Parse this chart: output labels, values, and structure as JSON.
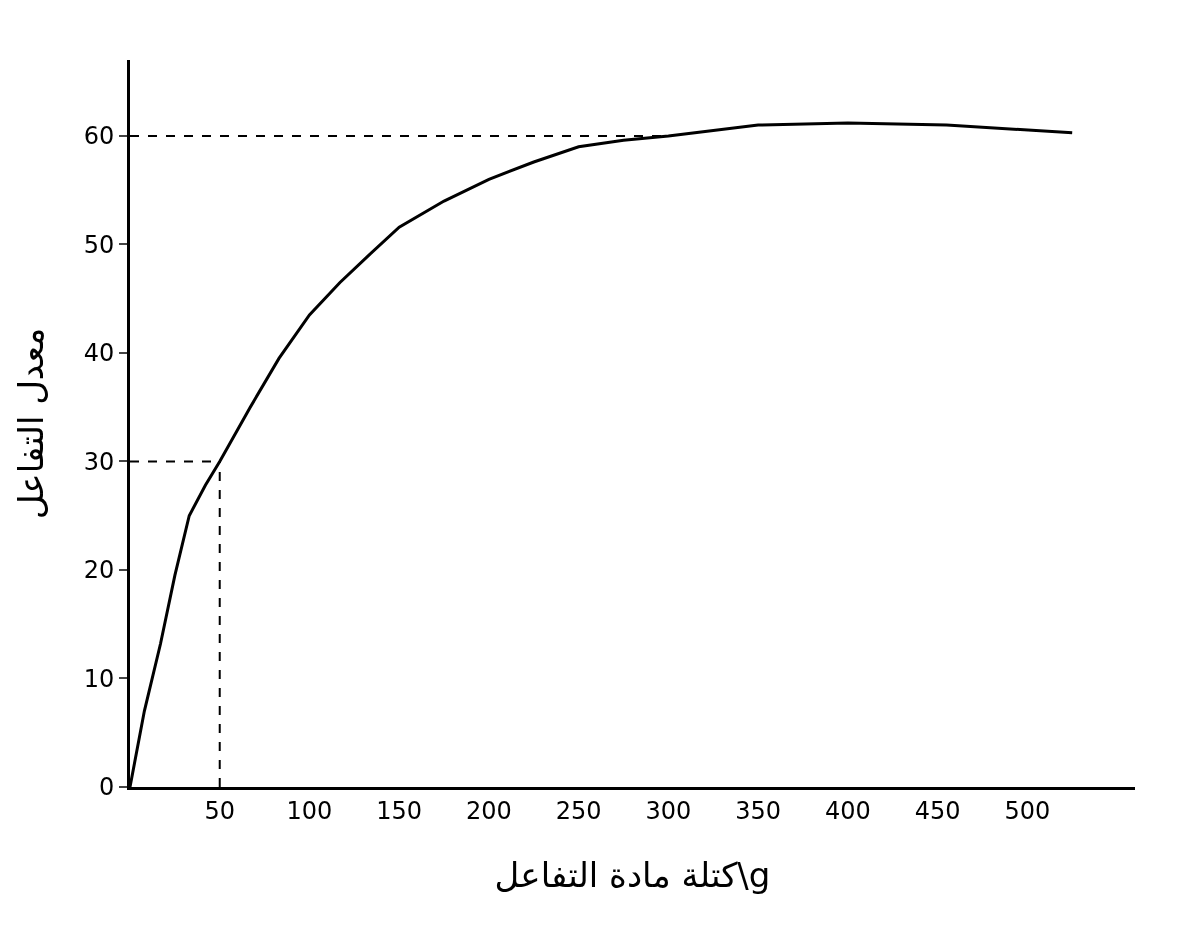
{
  "chart_data": {
    "type": "line",
    "xlabel": "كتلة مادة التفاعل\\g",
    "ylabel": "معدل التفاعل",
    "xlim": [
      0,
      560
    ],
    "ylim": [
      0,
      67
    ],
    "xticks": [
      50,
      100,
      150,
      200,
      250,
      300,
      350,
      400,
      450,
      500
    ],
    "yticks": [
      0,
      10,
      20,
      30,
      40,
      50,
      60
    ],
    "marker": "none",
    "series": [
      {
        "color": "#000000",
        "line_style": "solid",
        "x": [
          0,
          8,
          17,
          25,
          33,
          42,
          50,
          67,
          83,
          100,
          117,
          133,
          150,
          175,
          200,
          225,
          250,
          275,
          300,
          350,
          400,
          455,
          525
        ],
        "values": [
          0,
          7,
          13.2,
          19.5,
          25,
          27.8,
          30,
          35,
          39.5,
          43.5,
          46.5,
          49,
          51.6,
          54,
          56,
          57.6,
          59,
          59.6,
          60,
          61,
          61.2,
          61,
          60.3
        ]
      },
      {
        "color": "#000000",
        "line_style": "dashed",
        "x": [
          0,
          300
        ],
        "values": [
          60,
          60
        ]
      },
      {
        "color": "#000000",
        "line_style": "dashed",
        "x": [
          0,
          50
        ],
        "values": [
          30,
          30
        ]
      },
      {
        "color": "#000000",
        "line_style": "dashed",
        "x": [
          50,
          50
        ],
        "values": [
          0,
          30
        ]
      }
    ]
  }
}
